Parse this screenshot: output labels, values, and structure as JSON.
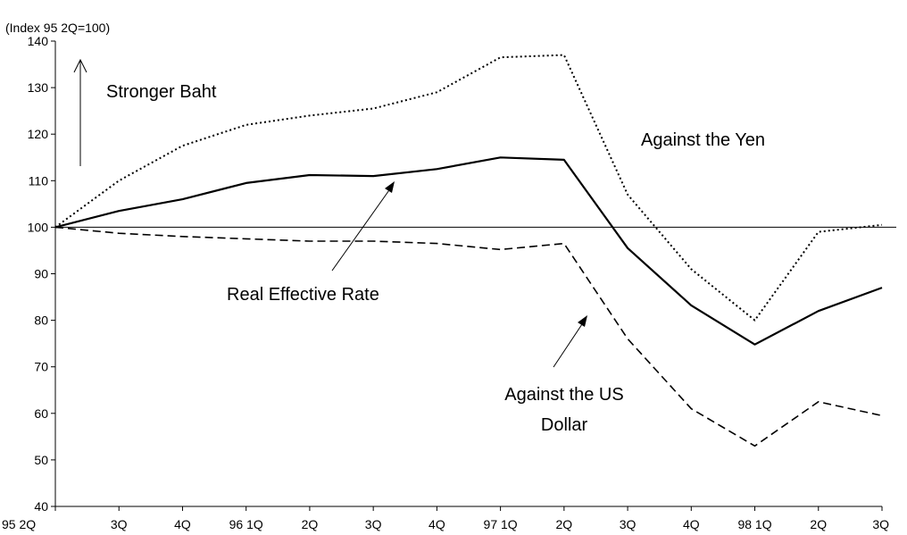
{
  "chart_data": {
    "type": "line",
    "unit_label": "(Index 95 2Q=100)",
    "categories": [
      "95 2Q",
      "3Q",
      "4Q",
      "96 1Q",
      "2Q",
      "3Q",
      "4Q",
      "97 1Q",
      "2Q",
      "3Q",
      "4Q",
      "98 1Q",
      "2Q",
      "3Q"
    ],
    "ylim": [
      40,
      140
    ],
    "yticks": [
      40,
      50,
      60,
      70,
      80,
      90,
      100,
      110,
      120,
      130,
      140
    ],
    "reference_line": 100,
    "grid": false,
    "series": [
      {
        "key": "yen",
        "style": "dotted",
        "values": [
          100,
          110,
          117.5,
          122,
          124,
          125.5,
          129,
          136.5,
          137,
          107,
          91,
          80,
          99,
          100.5
        ]
      },
      {
        "key": "reer",
        "style": "solid",
        "values": [
          100,
          103.5,
          106,
          109.5,
          111.2,
          111,
          112.5,
          115,
          114.5,
          95.5,
          83.2,
          74.8,
          82,
          87
        ]
      },
      {
        "key": "usd",
        "style": "dashed",
        "values": [
          100,
          98.7,
          98,
          97.5,
          97,
          97,
          96.5,
          95.2,
          96.5,
          76,
          61,
          53,
          62.5,
          59.5
        ]
      }
    ],
    "annotations": {
      "stronger": "Stronger Baht",
      "yen": "Against the Yen",
      "reer": "Real Effective Rate",
      "usd_line1": "Against the US",
      "usd_line2": "Dollar"
    }
  }
}
